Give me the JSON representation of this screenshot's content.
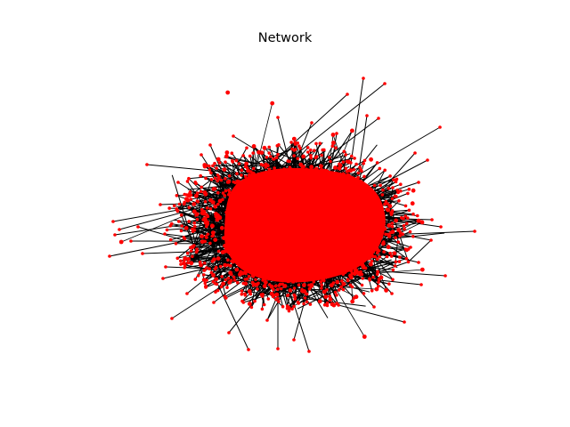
{
  "title": "Network",
  "network": {
    "layout": "force-directed",
    "node_color": "#ff0000",
    "edge_color": "#000000",
    "background": "#ffffff",
    "axes_visible": false
  }
}
